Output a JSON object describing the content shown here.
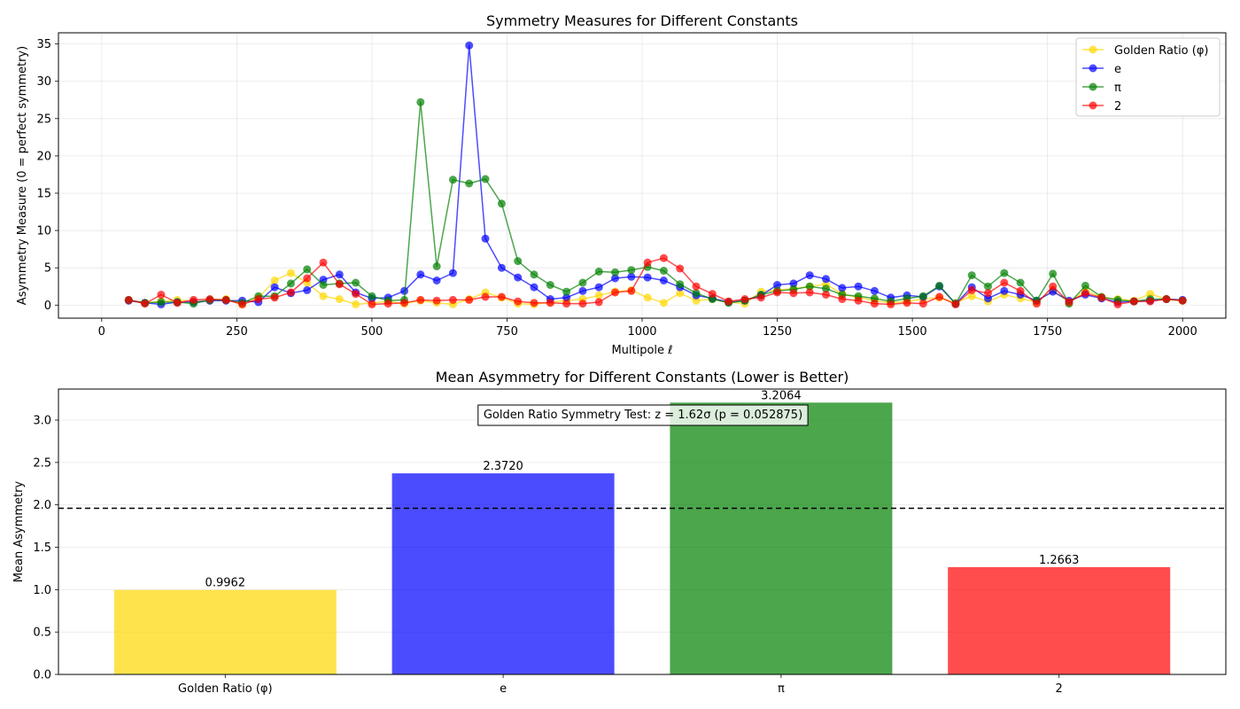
{
  "figure": {
    "background": "#ffffff"
  },
  "chart_data": [
    {
      "type": "line",
      "title": "Symmetry Measures for Different Constants",
      "xlabel": "Multipole ℓ",
      "ylabel": "Asymmetry Measure (0 = perfect symmetry)",
      "xlim": [
        -80,
        2080
      ],
      "ylim": [
        -1.75,
        36.5
      ],
      "xticks": [
        0,
        250,
        500,
        750,
        1000,
        1250,
        1500,
        1750,
        2000
      ],
      "yticks": [
        0,
        5,
        10,
        15,
        20,
        25,
        30,
        35
      ],
      "grid": true,
      "legend": "top-right",
      "x": [
        50,
        80,
        110,
        140,
        170,
        200,
        230,
        260,
        290,
        320,
        350,
        380,
        410,
        440,
        470,
        500,
        530,
        560,
        590,
        620,
        650,
        680,
        710,
        740,
        770,
        800,
        830,
        860,
        890,
        920,
        950,
        980,
        1010,
        1040,
        1070,
        1100,
        1130,
        1160,
        1190,
        1220,
        1250,
        1280,
        1310,
        1340,
        1370,
        1400,
        1430,
        1460,
        1490,
        1520,
        1550,
        1580,
        1610,
        1640,
        1670,
        1700,
        1730,
        1760,
        1790,
        1820,
        1850,
        1880,
        1910,
        1940,
        1970,
        2000
      ],
      "series": [
        {
          "name": "Golden Ratio (φ)",
          "color": "#FFD700",
          "values": [
            0.6,
            0.3,
            0.5,
            0.7,
            0.5,
            0.6,
            0.8,
            0.1,
            1.0,
            3.3,
            4.3,
            3.0,
            1.2,
            0.8,
            0.1,
            0.3,
            0.5,
            0.2,
            0.6,
            0.3,
            0.1,
            0.8,
            1.7,
            1.0,
            0.2,
            0.1,
            0.4,
            0.6,
            0.8,
            1.3,
            1.8,
            2.0,
            1.0,
            0.3,
            1.6,
            0.6,
            0.8,
            0.4,
            0.2,
            1.8,
            2.0,
            2.2,
            2.5,
            2.8,
            1.5,
            1.0,
            0.6,
            0.3,
            0.5,
            0.8,
            1.0,
            0.3,
            1.2,
            0.5,
            1.4,
            0.9,
            0.4,
            2.0,
            0.3,
            2.0,
            1.0,
            0.8,
            0.6,
            1.5,
            0.8,
            0.6
          ]
        },
        {
          "name": "e",
          "color": "#0000FF",
          "values": [
            0.6,
            0.3,
            0.1,
            0.4,
            0.4,
            0.6,
            0.6,
            0.6,
            0.4,
            2.4,
            1.6,
            2.0,
            3.4,
            4.1,
            1.7,
            0.9,
            1.0,
            1.9,
            4.1,
            3.3,
            4.3,
            34.8,
            8.9,
            5.0,
            3.7,
            2.4,
            0.8,
            1.0,
            1.9,
            2.4,
            3.6,
            3.8,
            3.7,
            3.3,
            2.4,
            1.3,
            0.9,
            0.4,
            0.6,
            1.3,
            2.7,
            2.9,
            4.0,
            3.5,
            2.3,
            2.5,
            1.9,
            1.0,
            1.3,
            1.1,
            2.5,
            0.2,
            2.4,
            0.9,
            1.9,
            1.4,
            0.6,
            1.8,
            0.6,
            1.4,
            0.9,
            0.4,
            0.5,
            0.6,
            0.8,
            0.7
          ]
        },
        {
          "name": "π",
          "color": "#008000",
          "values": [
            0.7,
            0.3,
            0.4,
            0.4,
            0.2,
            0.7,
            0.7,
            0.3,
            1.2,
            1.2,
            2.9,
            4.8,
            2.7,
            2.9,
            3.0,
            1.2,
            0.6,
            0.7,
            27.2,
            5.2,
            16.8,
            16.3,
            16.9,
            13.6,
            5.9,
            4.1,
            2.7,
            1.8,
            3.0,
            4.5,
            4.4,
            4.7,
            5.1,
            4.6,
            2.8,
            1.6,
            0.8,
            0.3,
            0.6,
            1.4,
            1.9,
            2.1,
            2.5,
            2.2,
            1.4,
            1.2,
            0.9,
            0.5,
            0.9,
            1.2,
            2.6,
            0.2,
            4.0,
            2.5,
            4.3,
            3.0,
            0.6,
            4.2,
            0.2,
            2.6,
            1.1,
            0.7,
            0.5,
            0.8,
            0.8,
            0.6
          ]
        },
        {
          "name": "2",
          "color": "#FF0000",
          "values": [
            0.7,
            0.2,
            1.4,
            0.3,
            0.7,
            0.8,
            0.7,
            0.1,
            0.8,
            1.0,
            1.7,
            3.6,
            5.7,
            2.8,
            1.5,
            0.1,
            0.2,
            0.3,
            0.7,
            0.6,
            0.7,
            0.7,
            1.1,
            1.1,
            0.5,
            0.3,
            0.3,
            0.2,
            0.2,
            0.4,
            1.7,
            1.9,
            5.7,
            6.3,
            4.9,
            2.5,
            1.5,
            0.5,
            0.8,
            1.0,
            1.7,
            1.6,
            1.7,
            1.4,
            0.8,
            0.6,
            0.2,
            0.1,
            0.3,
            0.2,
            1.1,
            0.1,
            2.0,
            1.6,
            3.0,
            1.9,
            0.2,
            2.5,
            0.4,
            1.6,
            1.0,
            0.1,
            0.5,
            0.5,
            0.8,
            0.6
          ]
        }
      ]
    },
    {
      "type": "bar",
      "title": "Mean Asymmetry for Different Constants (Lower is Better)",
      "xlabel": "",
      "ylabel": "Mean Asymmetry",
      "ylim": [
        0,
        3.366
      ],
      "yticks": [
        0.0,
        0.5,
        1.0,
        1.5,
        2.0,
        2.5,
        3.0
      ],
      "grid": true,
      "categories": [
        "Golden Ratio (φ)",
        "e",
        "π",
        "2"
      ],
      "values": [
        0.9962,
        2.372,
        3.2064,
        1.2663
      ],
      "value_labels": [
        "0.9962",
        "2.3720",
        "3.2064",
        "1.2663"
      ],
      "colors": [
        "#FFD700",
        "#0000FF",
        "#008000",
        "#FF0000"
      ],
      "reference_line": 1.96,
      "annotation": "Golden Ratio Symmetry Test: z = 1.62σ (p = 0.052875)"
    }
  ]
}
